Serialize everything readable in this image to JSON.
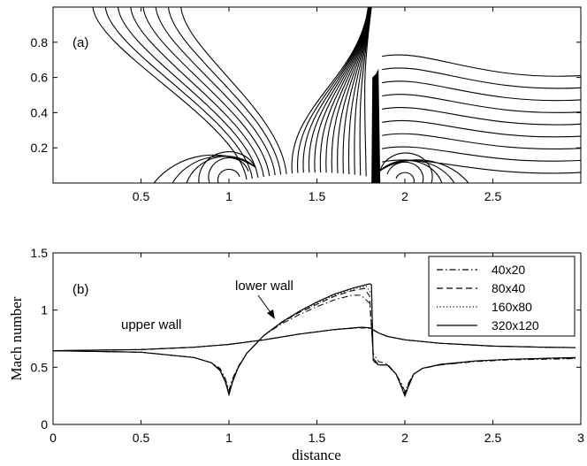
{
  "chart_data": [
    {
      "type": "contour",
      "panel_label": "(a)",
      "xlim": [
        0,
        3
      ],
      "ylim": [
        0,
        1
      ],
      "xticks": [
        0.5,
        1,
        1.5,
        2,
        2.5
      ],
      "xtick_labels": [
        "0.5",
        "1",
        "1.5",
        "2",
        "2.5"
      ],
      "yticks": [
        0.2,
        0.4,
        0.6,
        0.8
      ],
      "ytick_labels": [
        "0.2",
        "0.4",
        "0.6",
        "0.8"
      ],
      "features": {
        "wall_singularities_x": [
          1,
          2
        ],
        "bump_range": [
          1,
          2
        ],
        "shock_x": 1.83,
        "shock_top_y": 0.75
      }
    },
    {
      "type": "line",
      "panel_label": "(b)",
      "xlabel": "distance",
      "ylabel": "Mach number",
      "xlim": [
        0,
        3
      ],
      "ylim": [
        0,
        1.5
      ],
      "xticks": [
        0,
        0.5,
        1,
        1.5,
        2,
        2.5,
        3
      ],
      "xtick_labels": [
        "0",
        "0.5",
        "1",
        "1.5",
        "2",
        "2.5",
        "3"
      ],
      "yticks": [
        0,
        0.5,
        1,
        1.5
      ],
      "ytick_labels": [
        "0",
        "0.5",
        "1",
        "1.5"
      ],
      "legend_position": "top-right",
      "annotations": [
        {
          "text": "upper wall"
        },
        {
          "text": "lower wall"
        }
      ],
      "series": [
        {
          "name": "40x20",
          "dash": "dashdot",
          "lower": [
            [
              0,
              0.645
            ],
            [
              0.5,
              0.632
            ],
            [
              0.8,
              0.585
            ],
            [
              0.9,
              0.54
            ],
            [
              0.95,
              0.49
            ],
            [
              0.98,
              0.4
            ],
            [
              1.0,
              0.3
            ],
            [
              1.02,
              0.4
            ],
            [
              1.05,
              0.5
            ],
            [
              1.1,
              0.62
            ],
            [
              1.2,
              0.78
            ],
            [
              1.3,
              0.88
            ],
            [
              1.4,
              0.96
            ],
            [
              1.5,
              1.03
            ],
            [
              1.6,
              1.09
            ],
            [
              1.7,
              1.13
            ],
            [
              1.75,
              1.13
            ],
            [
              1.8,
              1.06
            ],
            [
              1.82,
              0.62
            ],
            [
              1.85,
              0.55
            ],
            [
              1.9,
              0.53
            ],
            [
              1.95,
              0.44
            ],
            [
              1.98,
              0.36
            ],
            [
              2.0,
              0.29
            ],
            [
              2.02,
              0.36
            ],
            [
              2.05,
              0.44
            ],
            [
              2.1,
              0.49
            ],
            [
              2.2,
              0.52
            ],
            [
              2.4,
              0.55
            ],
            [
              2.6,
              0.565
            ],
            [
              2.8,
              0.57
            ],
            [
              2.97,
              0.575
            ]
          ],
          "upper": [
            [
              0,
              0.645
            ],
            [
              0.5,
              0.655
            ],
            [
              0.8,
              0.675
            ],
            [
              1.0,
              0.7
            ],
            [
              1.2,
              0.74
            ],
            [
              1.4,
              0.79
            ],
            [
              1.6,
              0.83
            ],
            [
              1.75,
              0.845
            ],
            [
              1.8,
              0.84
            ],
            [
              1.85,
              0.8
            ],
            [
              1.9,
              0.77
            ],
            [
              2.0,
              0.74
            ],
            [
              2.2,
              0.71
            ],
            [
              2.5,
              0.685
            ],
            [
              2.8,
              0.675
            ],
            [
              2.97,
              0.672
            ]
          ]
        },
        {
          "name": "80x40",
          "dash": "dashed",
          "lower": [
            [
              0,
              0.645
            ],
            [
              0.5,
              0.632
            ],
            [
              0.8,
              0.585
            ],
            [
              0.9,
              0.54
            ],
            [
              0.95,
              0.48
            ],
            [
              0.98,
              0.38
            ],
            [
              1.0,
              0.28
            ],
            [
              1.02,
              0.38
            ],
            [
              1.05,
              0.49
            ],
            [
              1.1,
              0.62
            ],
            [
              1.2,
              0.78
            ],
            [
              1.3,
              0.89
            ],
            [
              1.4,
              0.98
            ],
            [
              1.5,
              1.05
            ],
            [
              1.6,
              1.12
            ],
            [
              1.7,
              1.17
            ],
            [
              1.77,
              1.19
            ],
            [
              1.8,
              1.12
            ],
            [
              1.82,
              0.58
            ],
            [
              1.85,
              0.52
            ],
            [
              1.9,
              0.52
            ],
            [
              1.95,
              0.44
            ],
            [
              1.98,
              0.34
            ],
            [
              2.0,
              0.27
            ],
            [
              2.02,
              0.35
            ],
            [
              2.05,
              0.44
            ],
            [
              2.1,
              0.49
            ],
            [
              2.2,
              0.52
            ],
            [
              2.4,
              0.555
            ],
            [
              2.6,
              0.57
            ],
            [
              2.8,
              0.575
            ],
            [
              2.97,
              0.58
            ]
          ],
          "upper": [
            [
              0,
              0.645
            ],
            [
              0.5,
              0.655
            ],
            [
              0.8,
              0.675
            ],
            [
              1.0,
              0.7
            ],
            [
              1.2,
              0.74
            ],
            [
              1.4,
              0.79
            ],
            [
              1.6,
              0.83
            ],
            [
              1.75,
              0.85
            ],
            [
              1.8,
              0.845
            ],
            [
              1.85,
              0.8
            ],
            [
              1.9,
              0.77
            ],
            [
              2.0,
              0.74
            ],
            [
              2.2,
              0.71
            ],
            [
              2.5,
              0.685
            ],
            [
              2.8,
              0.675
            ],
            [
              2.97,
              0.672
            ]
          ]
        },
        {
          "name": "160x80",
          "dash": "dotted",
          "lower": [
            [
              0,
              0.645
            ],
            [
              0.5,
              0.632
            ],
            [
              0.8,
              0.585
            ],
            [
              0.9,
              0.54
            ],
            [
              0.95,
              0.48
            ],
            [
              0.98,
              0.37
            ],
            [
              1.0,
              0.27
            ],
            [
              1.02,
              0.37
            ],
            [
              1.05,
              0.49
            ],
            [
              1.1,
              0.62
            ],
            [
              1.2,
              0.78
            ],
            [
              1.3,
              0.89
            ],
            [
              1.4,
              0.985
            ],
            [
              1.5,
              1.06
            ],
            [
              1.6,
              1.13
            ],
            [
              1.7,
              1.18
            ],
            [
              1.78,
              1.21
            ],
            [
              1.81,
              1.14
            ],
            [
              1.82,
              0.55
            ],
            [
              1.85,
              0.52
            ],
            [
              1.9,
              0.52
            ],
            [
              1.95,
              0.44
            ],
            [
              1.98,
              0.33
            ],
            [
              2.0,
              0.26
            ],
            [
              2.02,
              0.34
            ],
            [
              2.05,
              0.44
            ],
            [
              2.1,
              0.49
            ],
            [
              2.2,
              0.525
            ],
            [
              2.4,
              0.555
            ],
            [
              2.6,
              0.57
            ],
            [
              2.8,
              0.578
            ],
            [
              2.97,
              0.582
            ]
          ],
          "upper": [
            [
              0,
              0.645
            ],
            [
              0.5,
              0.655
            ],
            [
              0.8,
              0.675
            ],
            [
              1.0,
              0.7
            ],
            [
              1.2,
              0.74
            ],
            [
              1.4,
              0.79
            ],
            [
              1.6,
              0.83
            ],
            [
              1.75,
              0.85
            ],
            [
              1.8,
              0.845
            ],
            [
              1.85,
              0.8
            ],
            [
              1.9,
              0.77
            ],
            [
              2.0,
              0.74
            ],
            [
              2.2,
              0.71
            ],
            [
              2.5,
              0.685
            ],
            [
              2.8,
              0.675
            ],
            [
              2.97,
              0.672
            ]
          ]
        },
        {
          "name": "320x120",
          "dash": "solid",
          "lower": [
            [
              0,
              0.645
            ],
            [
              0.5,
              0.632
            ],
            [
              0.8,
              0.585
            ],
            [
              0.9,
              0.54
            ],
            [
              0.95,
              0.47
            ],
            [
              0.98,
              0.37
            ],
            [
              1.0,
              0.26
            ],
            [
              1.02,
              0.37
            ],
            [
              1.05,
              0.49
            ],
            [
              1.1,
              0.62
            ],
            [
              1.2,
              0.78
            ],
            [
              1.3,
              0.895
            ],
            [
              1.4,
              0.99
            ],
            [
              1.5,
              1.07
            ],
            [
              1.6,
              1.14
            ],
            [
              1.7,
              1.19
            ],
            [
              1.8,
              1.23
            ],
            [
              1.81,
              1.22
            ],
            [
              1.82,
              0.56
            ],
            [
              1.85,
              0.52
            ],
            [
              1.9,
              0.52
            ],
            [
              1.95,
              0.44
            ],
            [
              1.98,
              0.33
            ],
            [
              2.0,
              0.25
            ],
            [
              2.02,
              0.33
            ],
            [
              2.05,
              0.44
            ],
            [
              2.1,
              0.49
            ],
            [
              2.2,
              0.525
            ],
            [
              2.4,
              0.555
            ],
            [
              2.6,
              0.57
            ],
            [
              2.8,
              0.578
            ],
            [
              2.97,
              0.585
            ]
          ],
          "upper": [
            [
              0,
              0.645
            ],
            [
              0.5,
              0.655
            ],
            [
              0.8,
              0.675
            ],
            [
              1.0,
              0.7
            ],
            [
              1.2,
              0.74
            ],
            [
              1.4,
              0.79
            ],
            [
              1.6,
              0.83
            ],
            [
              1.75,
              0.85
            ],
            [
              1.8,
              0.845
            ],
            [
              1.85,
              0.8
            ],
            [
              1.9,
              0.77
            ],
            [
              2.0,
              0.74
            ],
            [
              2.2,
              0.71
            ],
            [
              2.5,
              0.685
            ],
            [
              2.8,
              0.675
            ],
            [
              2.97,
              0.672
            ]
          ]
        }
      ]
    }
  ]
}
